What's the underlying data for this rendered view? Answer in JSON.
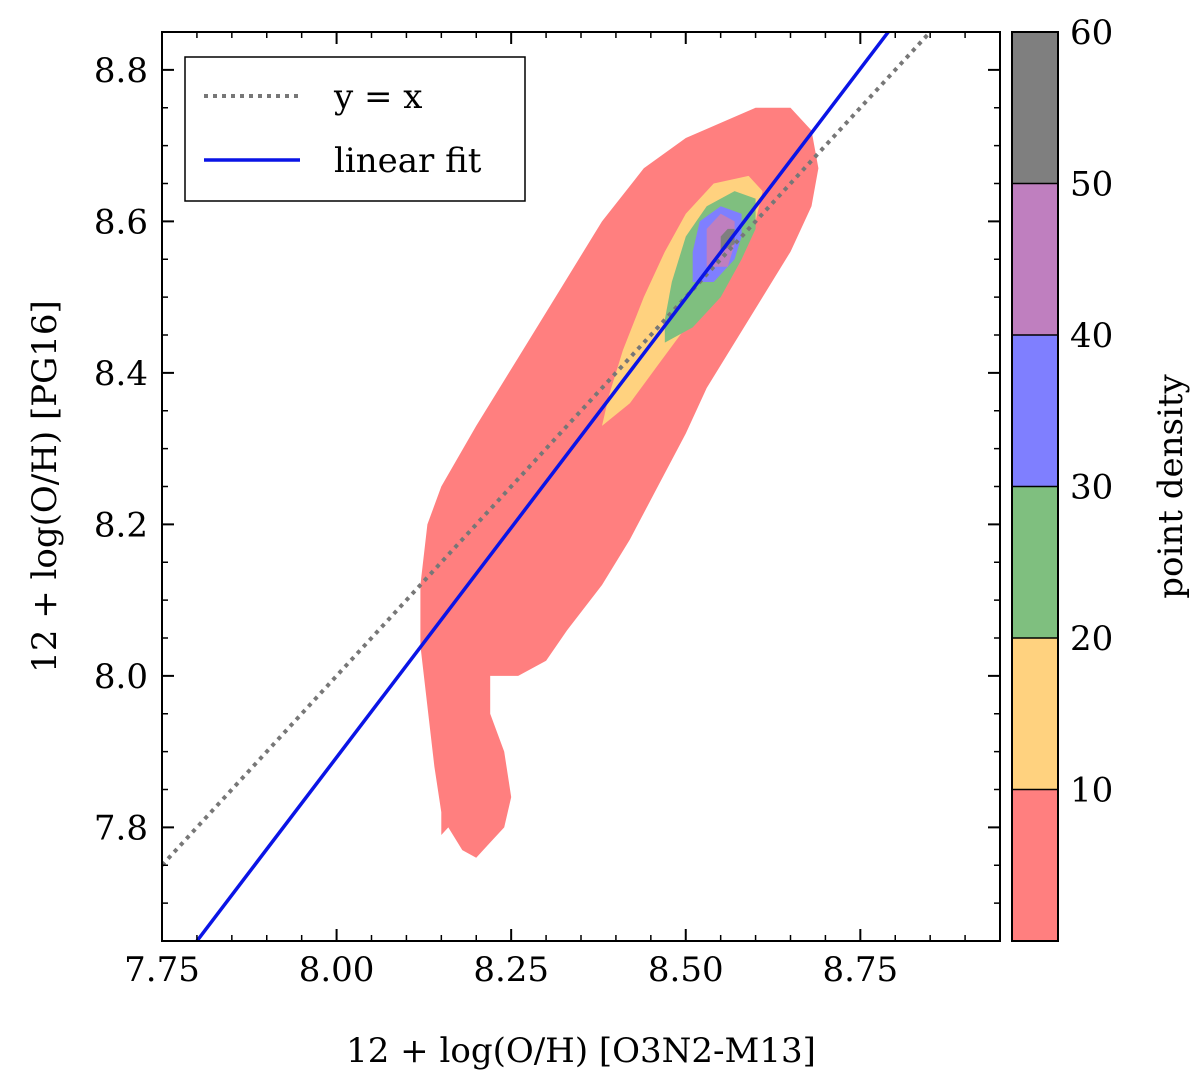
{
  "chart_data": {
    "type": "contour",
    "xlabel": "12 + log(O/H) [O3N2-M13]",
    "ylabel": "12 + log(O/H) [PG16]",
    "xlim": [
      7.75,
      8.95
    ],
    "ylim": [
      7.65,
      8.85
    ],
    "xticks": [
      7.75,
      8.0,
      8.25,
      8.5,
      8.75
    ],
    "xtick_labels": [
      "7.75",
      "8.00",
      "8.25",
      "8.50",
      "8.75"
    ],
    "yticks": [
      7.8,
      8.0,
      8.2,
      8.4,
      8.6,
      8.8
    ],
    "ytick_labels": [
      "7.8",
      "8.0",
      "8.2",
      "8.4",
      "8.6",
      "8.8"
    ],
    "legend": {
      "position": "upper-left",
      "entries": [
        {
          "label": "y = x",
          "style": "dotted",
          "color": "#777777"
        },
        {
          "label": "linear fit",
          "style": "solid",
          "color": "#0a14e6"
        }
      ]
    },
    "lines": [
      {
        "name": "y = x",
        "x": [
          7.75,
          8.85
        ],
        "y": [
          7.75,
          8.85
        ],
        "color": "#777777",
        "style": "dotted"
      },
      {
        "name": "linear fit",
        "x": [
          7.8,
          8.79
        ],
        "y": [
          7.65,
          8.85
        ],
        "color": "#0a14e6",
        "style": "solid"
      }
    ],
    "colorbar": {
      "label": "point density",
      "ticks": [
        10,
        20,
        30,
        40,
        50,
        60
      ],
      "tick_labels": [
        "10",
        "20",
        "30",
        "40",
        "50",
        "60"
      ],
      "levels": [
        {
          "from": 0,
          "to": 10,
          "color": "#ff7f7f"
        },
        {
          "from": 10,
          "to": 20,
          "color": "#ffd27f"
        },
        {
          "from": 20,
          "to": 30,
          "color": "#7fbf7f"
        },
        {
          "from": 30,
          "to": 40,
          "color": "#7f7fff"
        },
        {
          "from": 40,
          "to": 50,
          "color": "#bf7fbf"
        },
        {
          "from": 50,
          "to": 60,
          "color": "#7f7f7f"
        }
      ]
    },
    "contours": [
      {
        "level": "0-10",
        "color": "#ff7f7f",
        "points": [
          [
            8.15,
            7.79
          ],
          [
            8.16,
            7.8
          ],
          [
            8.18,
            7.77
          ],
          [
            8.2,
            7.76
          ],
          [
            8.22,
            7.78
          ],
          [
            8.24,
            7.8
          ],
          [
            8.25,
            7.84
          ],
          [
            8.24,
            7.9
          ],
          [
            8.22,
            7.95
          ],
          [
            8.22,
            8.0
          ],
          [
            8.26,
            8.0
          ],
          [
            8.3,
            8.02
          ],
          [
            8.33,
            8.06
          ],
          [
            8.38,
            8.12
          ],
          [
            8.42,
            8.18
          ],
          [
            8.46,
            8.25
          ],
          [
            8.5,
            8.32
          ],
          [
            8.53,
            8.38
          ],
          [
            8.57,
            8.44
          ],
          [
            8.61,
            8.5
          ],
          [
            8.65,
            8.56
          ],
          [
            8.68,
            8.62
          ],
          [
            8.69,
            8.67
          ],
          [
            8.68,
            8.72
          ],
          [
            8.65,
            8.75
          ],
          [
            8.6,
            8.75
          ],
          [
            8.55,
            8.73
          ],
          [
            8.5,
            8.71
          ],
          [
            8.44,
            8.67
          ],
          [
            8.38,
            8.6
          ],
          [
            8.32,
            8.51
          ],
          [
            8.26,
            8.42
          ],
          [
            8.2,
            8.33
          ],
          [
            8.15,
            8.25
          ],
          [
            8.13,
            8.2
          ],
          [
            8.12,
            8.12
          ],
          [
            8.12,
            8.04
          ],
          [
            8.13,
            7.96
          ],
          [
            8.14,
            7.88
          ],
          [
            8.15,
            7.82
          ]
        ]
      },
      {
        "level": "10-20",
        "color": "#ffd27f",
        "points": [
          [
            8.38,
            8.33
          ],
          [
            8.42,
            8.36
          ],
          [
            8.46,
            8.41
          ],
          [
            8.5,
            8.46
          ],
          [
            8.54,
            8.51
          ],
          [
            8.57,
            8.55
          ],
          [
            8.6,
            8.6
          ],
          [
            8.61,
            8.64
          ],
          [
            8.59,
            8.66
          ],
          [
            8.54,
            8.65
          ],
          [
            8.5,
            8.61
          ],
          [
            8.47,
            8.56
          ],
          [
            8.44,
            8.5
          ],
          [
            8.41,
            8.43
          ],
          [
            8.39,
            8.37
          ]
        ]
      },
      {
        "level": "20-30",
        "color": "#7fbf7f",
        "points": [
          [
            8.47,
            8.44
          ],
          [
            8.51,
            8.46
          ],
          [
            8.55,
            8.5
          ],
          [
            8.58,
            8.55
          ],
          [
            8.6,
            8.59
          ],
          [
            8.6,
            8.63
          ],
          [
            8.57,
            8.64
          ],
          [
            8.53,
            8.62
          ],
          [
            8.5,
            8.58
          ],
          [
            8.48,
            8.52
          ],
          [
            8.47,
            8.47
          ]
        ]
      },
      {
        "level": "30-40",
        "color": "#7f7fff",
        "points": [
          [
            8.51,
            8.52
          ],
          [
            8.54,
            8.52
          ],
          [
            8.57,
            8.55
          ],
          [
            8.58,
            8.58
          ],
          [
            8.58,
            8.61
          ],
          [
            8.55,
            8.62
          ],
          [
            8.52,
            8.6
          ],
          [
            8.51,
            8.56
          ]
        ]
      },
      {
        "level": "40-50",
        "color": "#bf7fbf",
        "points": [
          [
            8.53,
            8.54
          ],
          [
            8.56,
            8.54
          ],
          [
            8.57,
            8.57
          ],
          [
            8.57,
            8.6
          ],
          [
            8.55,
            8.61
          ],
          [
            8.53,
            8.59
          ],
          [
            8.53,
            8.56
          ]
        ]
      },
      {
        "level": "50-60",
        "color": "#7f7f7f",
        "points": [
          [
            8.55,
            8.56
          ],
          [
            8.57,
            8.57
          ],
          [
            8.57,
            8.59
          ],
          [
            8.56,
            8.59
          ],
          [
            8.55,
            8.58
          ]
        ]
      }
    ]
  }
}
